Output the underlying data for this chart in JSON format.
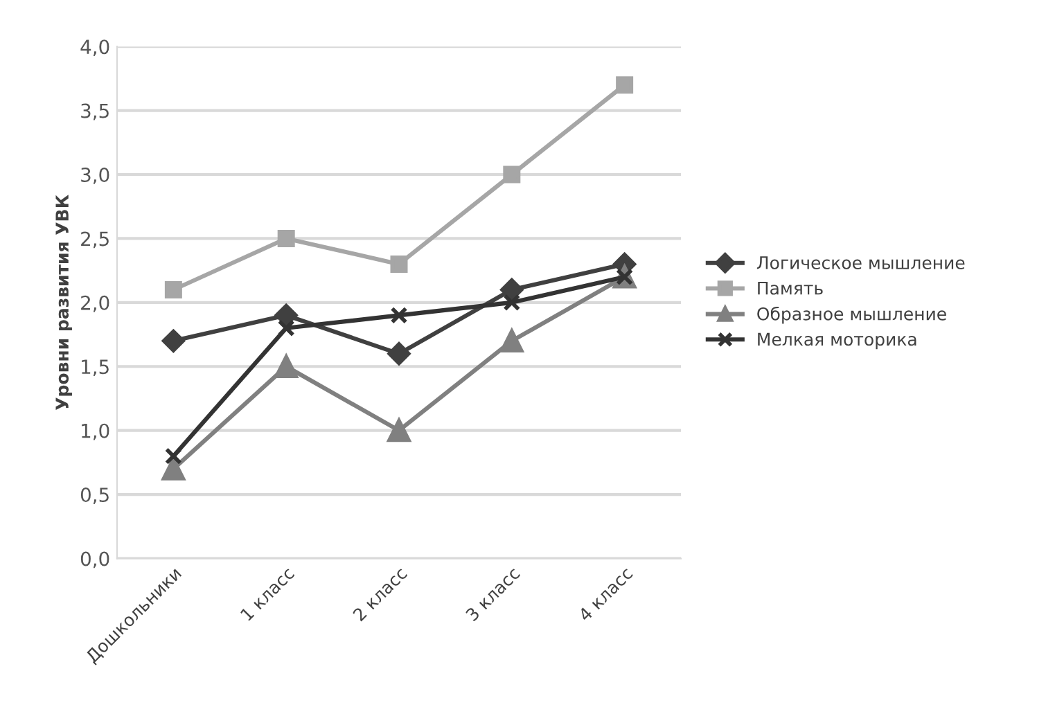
{
  "chart_data": {
    "type": "line",
    "ylabel": "Уровни развития УВК",
    "categories": [
      "Дошкольники",
      "1 класс",
      "2 класс",
      "3 класс",
      "4 класс"
    ],
    "series": [
      {
        "name": "Логическое мышление",
        "color": "#404040",
        "marker": "diamond",
        "values": [
          1.7,
          1.9,
          1.6,
          2.1,
          2.3
        ]
      },
      {
        "name": "Память",
        "color": "#a6a6a6",
        "marker": "square",
        "values": [
          2.1,
          2.5,
          2.3,
          3.0,
          3.7
        ]
      },
      {
        "name": "Образное мышление",
        "color": "#808080",
        "marker": "triangle",
        "values": [
          0.7,
          1.5,
          1.0,
          1.7,
          2.2
        ]
      },
      {
        "name": "Мелкая моторика",
        "color": "#333333",
        "marker": "cross",
        "values": [
          0.8,
          1.8,
          1.9,
          2.0,
          2.2
        ]
      }
    ],
    "ylim": [
      0,
      4
    ],
    "yticks": [
      {
        "value": 0,
        "label": "0,0"
      },
      {
        "value": 0.5,
        "label": "0,5"
      },
      {
        "value": 1,
        "label": "1,0"
      },
      {
        "value": 1.5,
        "label": "1,5"
      },
      {
        "value": 2,
        "label": "2,0"
      },
      {
        "value": 2.5,
        "label": "2,5"
      },
      {
        "value": 3,
        "label": "3,0"
      },
      {
        "value": 3.5,
        "label": "3,5"
      },
      {
        "value": 4,
        "label": "4,0"
      }
    ],
    "grid": "y",
    "legend": "right"
  }
}
